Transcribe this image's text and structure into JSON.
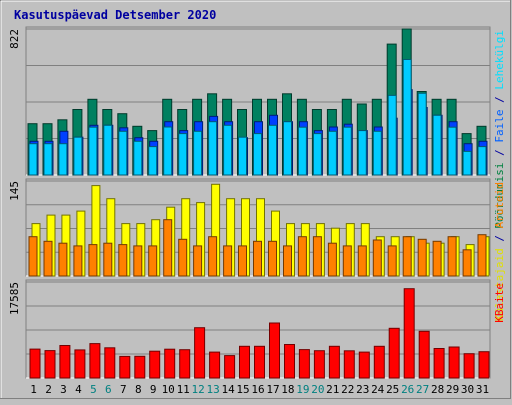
{
  "chart_data": {
    "type": "bar",
    "title": "Kasutuspäevad Detsember 2020",
    "categories": [
      "1",
      "2",
      "3",
      "4",
      "5",
      "6",
      "7",
      "8",
      "9",
      "10",
      "11",
      "12",
      "13",
      "14",
      "15",
      "16",
      "17",
      "18",
      "19",
      "20",
      "21",
      "22",
      "23",
      "24",
      "25",
      "26",
      "27",
      "28",
      "29",
      "30",
      "31"
    ],
    "weekend_days": [
      "5",
      "6",
      "12",
      "13",
      "19",
      "20",
      "26",
      "27"
    ],
    "panels": [
      {
        "id": "top",
        "ymax_label": "822",
        "ylim": [
          0,
          822
        ],
        "right_label_parts": [
          {
            "text": "Pöördumisi",
            "color": "#008040"
          },
          {
            "text": " / ",
            "color": "#0000a0"
          },
          {
            "text": "Faile",
            "color": "#0060ff"
          },
          {
            "text": " / ",
            "color": "#0000a0"
          },
          {
            "text": "Lehekülgi",
            "color": "#00e0ff"
          }
        ],
        "series": [
          {
            "name": "Pöördumisi",
            "color": "#008060",
            "values": [
              289,
              289,
              311,
              369,
              426,
              369,
              345,
              274,
              250,
              426,
              369,
              426,
              457,
              426,
              369,
              426,
              426,
              457,
              426,
              369,
              369,
              426,
              400,
              426,
              737,
              822,
              470,
              426,
              426,
              233,
              274
            ]
          },
          {
            "name": "Faile",
            "color": "#0040ff",
            "values": [
              190,
              190,
              246,
              213,
              280,
              280,
              266,
              210,
              190,
              300,
              250,
              300,
              330,
              300,
              210,
              300,
              336,
              300,
              300,
              250,
              270,
              286,
              250,
              270,
              320,
              480,
              380,
              336,
              300,
              176,
              190
            ]
          },
          {
            "name": "Lehekülgi",
            "color": "#00ccff",
            "values": [
              176,
              176,
              176,
              213,
              269,
              280,
              246,
              190,
              160,
              270,
              233,
              246,
              300,
              280,
              213,
              233,
              280,
              300,
              269,
              233,
              246,
              269,
              250,
              246,
              448,
              650,
              460,
              336,
              269,
              133,
              160
            ]
          }
        ]
      },
      {
        "id": "middle",
        "ymax_label": "145",
        "ylim": [
          0,
          145
        ],
        "right_label_parts": [
          {
            "text": "Külastajaid",
            "color": "#e0e000"
          },
          {
            "text": " / ",
            "color": "#0000a0"
          },
          {
            "text": "Aruteid",
            "color": "#ff8000"
          }
        ],
        "series": [
          {
            "name": "Külastajaid",
            "color": "#ffff00",
            "values": [
              80,
              93,
              93,
              99,
              138,
              118,
              80,
              80,
              86,
              105,
              118,
              112,
              140,
              118,
              118,
              118,
              99,
              80,
              80,
              80,
              73,
              80,
              80,
              60,
              60,
              60,
              50,
              50,
              60,
              48,
              60
            ]
          },
          {
            "name": "Aruteid",
            "color": "#ff8000",
            "values": [
              60,
              53,
              50,
              46,
              48,
              50,
              48,
              46,
              46,
              86,
              56,
              46,
              60,
              46,
              46,
              53,
              53,
              46,
              60,
              60,
              50,
              46,
              46,
              55,
              46,
              60,
              56,
              53,
              60,
              40,
              63
            ]
          }
        ]
      },
      {
        "id": "bottom",
        "ymax_label": "17585",
        "ylim": [
          0,
          17585
        ],
        "right_label_parts": [
          {
            "text": "KBaite",
            "color": "#ff0000"
          }
        ],
        "series": [
          {
            "name": "KBaite",
            "color": "#ff0000",
            "values": [
              5290,
              5010,
              5950,
              5150,
              6300,
              5530,
              3950,
              3980,
              4900,
              5280,
              5180,
              9220,
              4750,
              4100,
              5800,
              5800,
              10070,
              6140,
              5200,
              5000,
              5800,
              4990,
              4750,
              5800,
              9100,
              16350,
              8560,
              5410,
              5670,
              4460,
              4820
            ]
          }
        ]
      }
    ]
  }
}
